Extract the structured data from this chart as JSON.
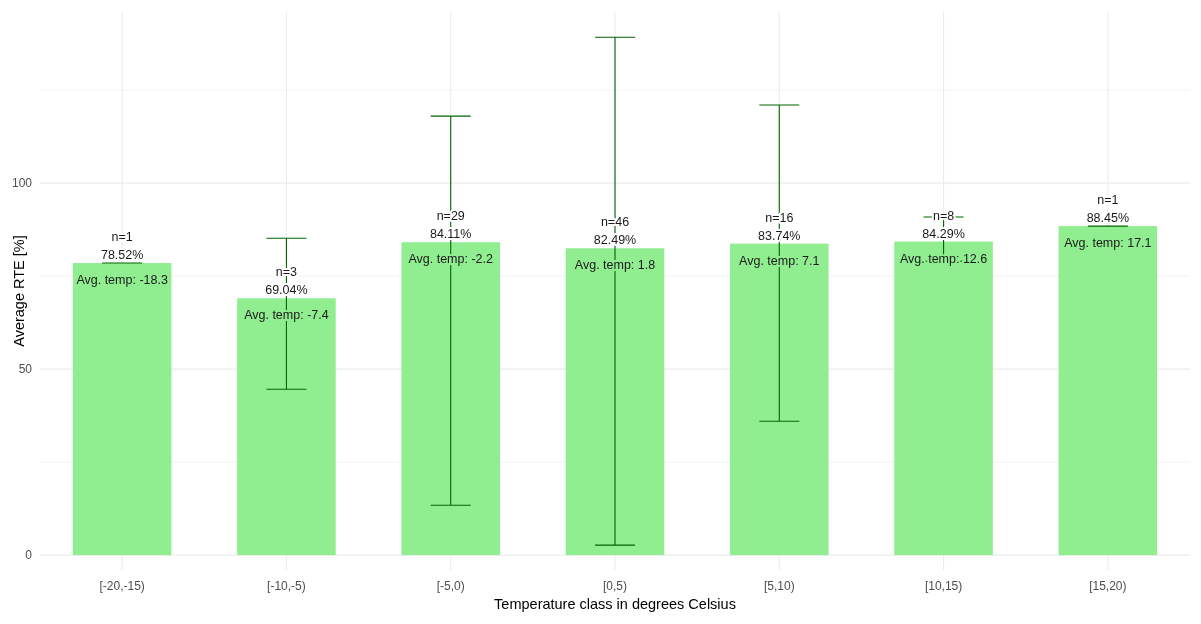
{
  "chart_data": {
    "type": "bar",
    "xlabel": "Temperature class in degrees Celsius",
    "ylabel": "Average RTE [%]",
    "categories": [
      "[-20,-15)",
      "[-10,-5)",
      "[-5,0)",
      "[0,5)",
      "[5,10)",
      "[10,15)",
      "[15,20)"
    ],
    "series": [
      {
        "color": "#90ee90",
        "values": [
          78.52,
          69.04,
          84.11,
          82.49,
          83.74,
          84.29,
          88.45
        ],
        "errors": [
          0,
          [
            44.6,
            85.2
          ],
          [
            13.4,
            118.0
          ],
          [
            2.7,
            139.2
          ],
          [
            36.0,
            121.0
          ],
          [
            79.0,
            90.9
          ],
          0
        ],
        "value_labels": [
          "78.52%",
          "69.04%",
          "84.11%",
          "82.49%",
          "83.74%",
          "84.29%",
          "88.45%"
        ]
      }
    ],
    "annotations": [
      {
        "text": "n=1",
        "x": "[-20,-15)",
        "y": 78.52
      },
      {
        "text": "n=3",
        "x": "[-10,-5)",
        "y": 69.04
      },
      {
        "text": "n=29",
        "x": "[-5,0)",
        "y": 84.11
      },
      {
        "text": "n=46",
        "x": "[0,5)",
        "y": 82.49
      },
      {
        "text": "n=16",
        "x": "[5,10)",
        "y": 83.74
      },
      {
        "text": "n=8",
        "x": "[10,15)",
        "y": 84.29
      },
      {
        "text": "n=1",
        "x": "[15,20)",
        "y": 88.45
      },
      {
        "text": "Avg. temp: -18.3",
        "x": "[-20,-15)",
        "y": 78.52
      },
      {
        "text": "Avg. temp: -7.4",
        "x": "[-10,-5)",
        "y": 69.04
      },
      {
        "text": "Avg. temp: -2.2",
        "x": "[-5,0)",
        "y": 84.11
      },
      {
        "text": "Avg. temp: 1.8",
        "x": "[0,5)",
        "y": 82.49
      },
      {
        "text": "Avg. temp: 7.1",
        "x": "[5,10)",
        "y": 83.74
      },
      {
        "text": "Avg. temp: 12.6",
        "x": "[10,15)",
        "y": 84.29
      },
      {
        "text": "Avg. temp: 17.1",
        "x": "[15,20)",
        "y": 88.45
      }
    ],
    "ylim": [
      -4,
      146
    ],
    "yticks": [
      0,
      {
        "value": 25,
        "label": null
      },
      50,
      {
        "value": 75,
        "label": null
      },
      100,
      {
        "value": 125,
        "label": null
      }
    ],
    "grid": true
  }
}
